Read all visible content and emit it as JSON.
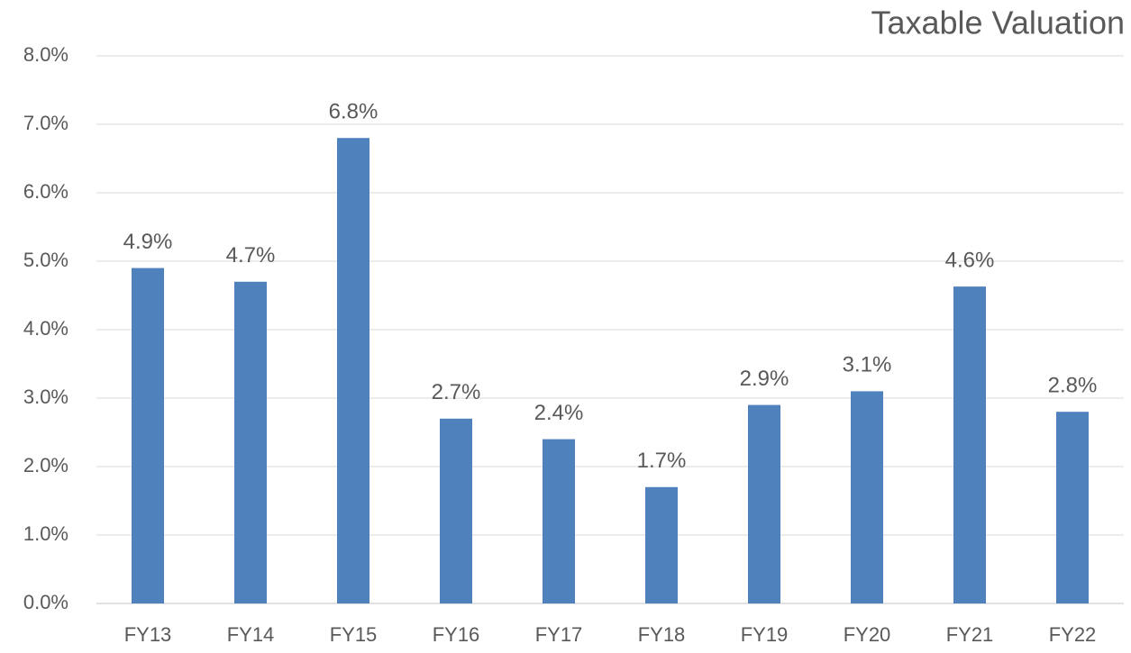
{
  "chart_data": {
    "type": "bar",
    "title": "Taxable Valuation",
    "categories": [
      "FY13",
      "FY14",
      "FY15",
      "FY16",
      "FY17",
      "FY18",
      "FY19",
      "FY20",
      "FY21",
      "FY22"
    ],
    "values": [
      4.9,
      4.7,
      6.8,
      2.7,
      2.4,
      1.7,
      2.9,
      3.1,
      4.63,
      2.8
    ],
    "value_labels": [
      "4.9%",
      "4.7%",
      "6.8%",
      "2.7%",
      "2.4%",
      "1.7%",
      "2.9%",
      "3.1%",
      "4.6%",
      "2.8%"
    ],
    "color": "#4f81bd",
    "ylim": [
      0,
      8
    ],
    "yticks": [
      {
        "value": 0,
        "label": "0.0%"
      },
      {
        "value": 1,
        "label": "1.0%"
      },
      {
        "value": 2,
        "label": "2.0%"
      },
      {
        "value": 3,
        "label": "3.0%"
      },
      {
        "value": 4,
        "label": "4.0%"
      },
      {
        "value": 5,
        "label": "5.0%"
      },
      {
        "value": 6,
        "label": "6.0%"
      },
      {
        "value": 7,
        "label": "7.0%"
      },
      {
        "value": 8,
        "label": "8.0%"
      }
    ],
    "grid": true
  }
}
